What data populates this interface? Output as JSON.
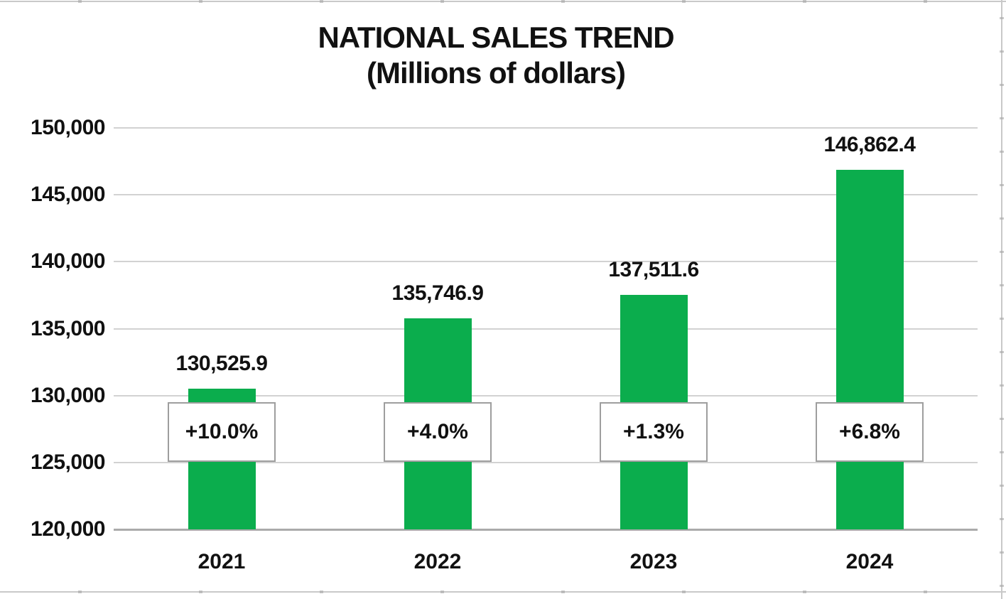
{
  "chart_data": {
    "type": "bar",
    "title": "NATIONAL SALES TREND",
    "subtitle": "(Millions of dollars)",
    "categories": [
      "2021",
      "2022",
      "2023",
      "2024"
    ],
    "values": [
      130525.9,
      135746.9,
      137511.6,
      146862.4
    ],
    "value_labels": [
      "130,525.9",
      "135,746.9",
      "137,511.6",
      "146,862.4"
    ],
    "pct_change_labels": [
      "+10.0%",
      "+4.0%",
      "+1.3%",
      "+6.8%"
    ],
    "ylim": [
      120000,
      150000
    ],
    "ytick_step": 5000,
    "yticks": [
      {
        "value": 150000,
        "label": "150,000"
      },
      {
        "value": 145000,
        "label": "145,000"
      },
      {
        "value": 140000,
        "label": "140,000"
      },
      {
        "value": 135000,
        "label": "135,000"
      },
      {
        "value": 130000,
        "label": "130,000"
      },
      {
        "value": 125000,
        "label": "125,000"
      },
      {
        "value": 120000,
        "label": "120,000"
      }
    ],
    "grid": "horizontal",
    "legend": "none",
    "style": {
      "bar_color": "#0bad4d",
      "gridline_color": "#d2d2d2",
      "axis_line_color": "#ababab",
      "box_border_color": "#9e9e9e",
      "box_fill_color": "#ffffff",
      "text_color": "#111111",
      "background_color": "#ffffff",
      "edge_line_color": "#c9c9c9",
      "edge_tick_color": "#a6a6a6"
    }
  }
}
